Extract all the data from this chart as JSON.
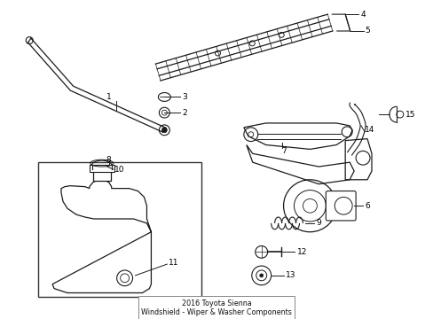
{
  "title": "2016 Toyota Sienna\nWindshield - Wiper & Washer Components",
  "bg_color": "#ffffff",
  "line_color": "#1a1a1a",
  "label_color": "#000000",
  "fig_width": 4.89,
  "fig_height": 3.6,
  "dpi": 100
}
